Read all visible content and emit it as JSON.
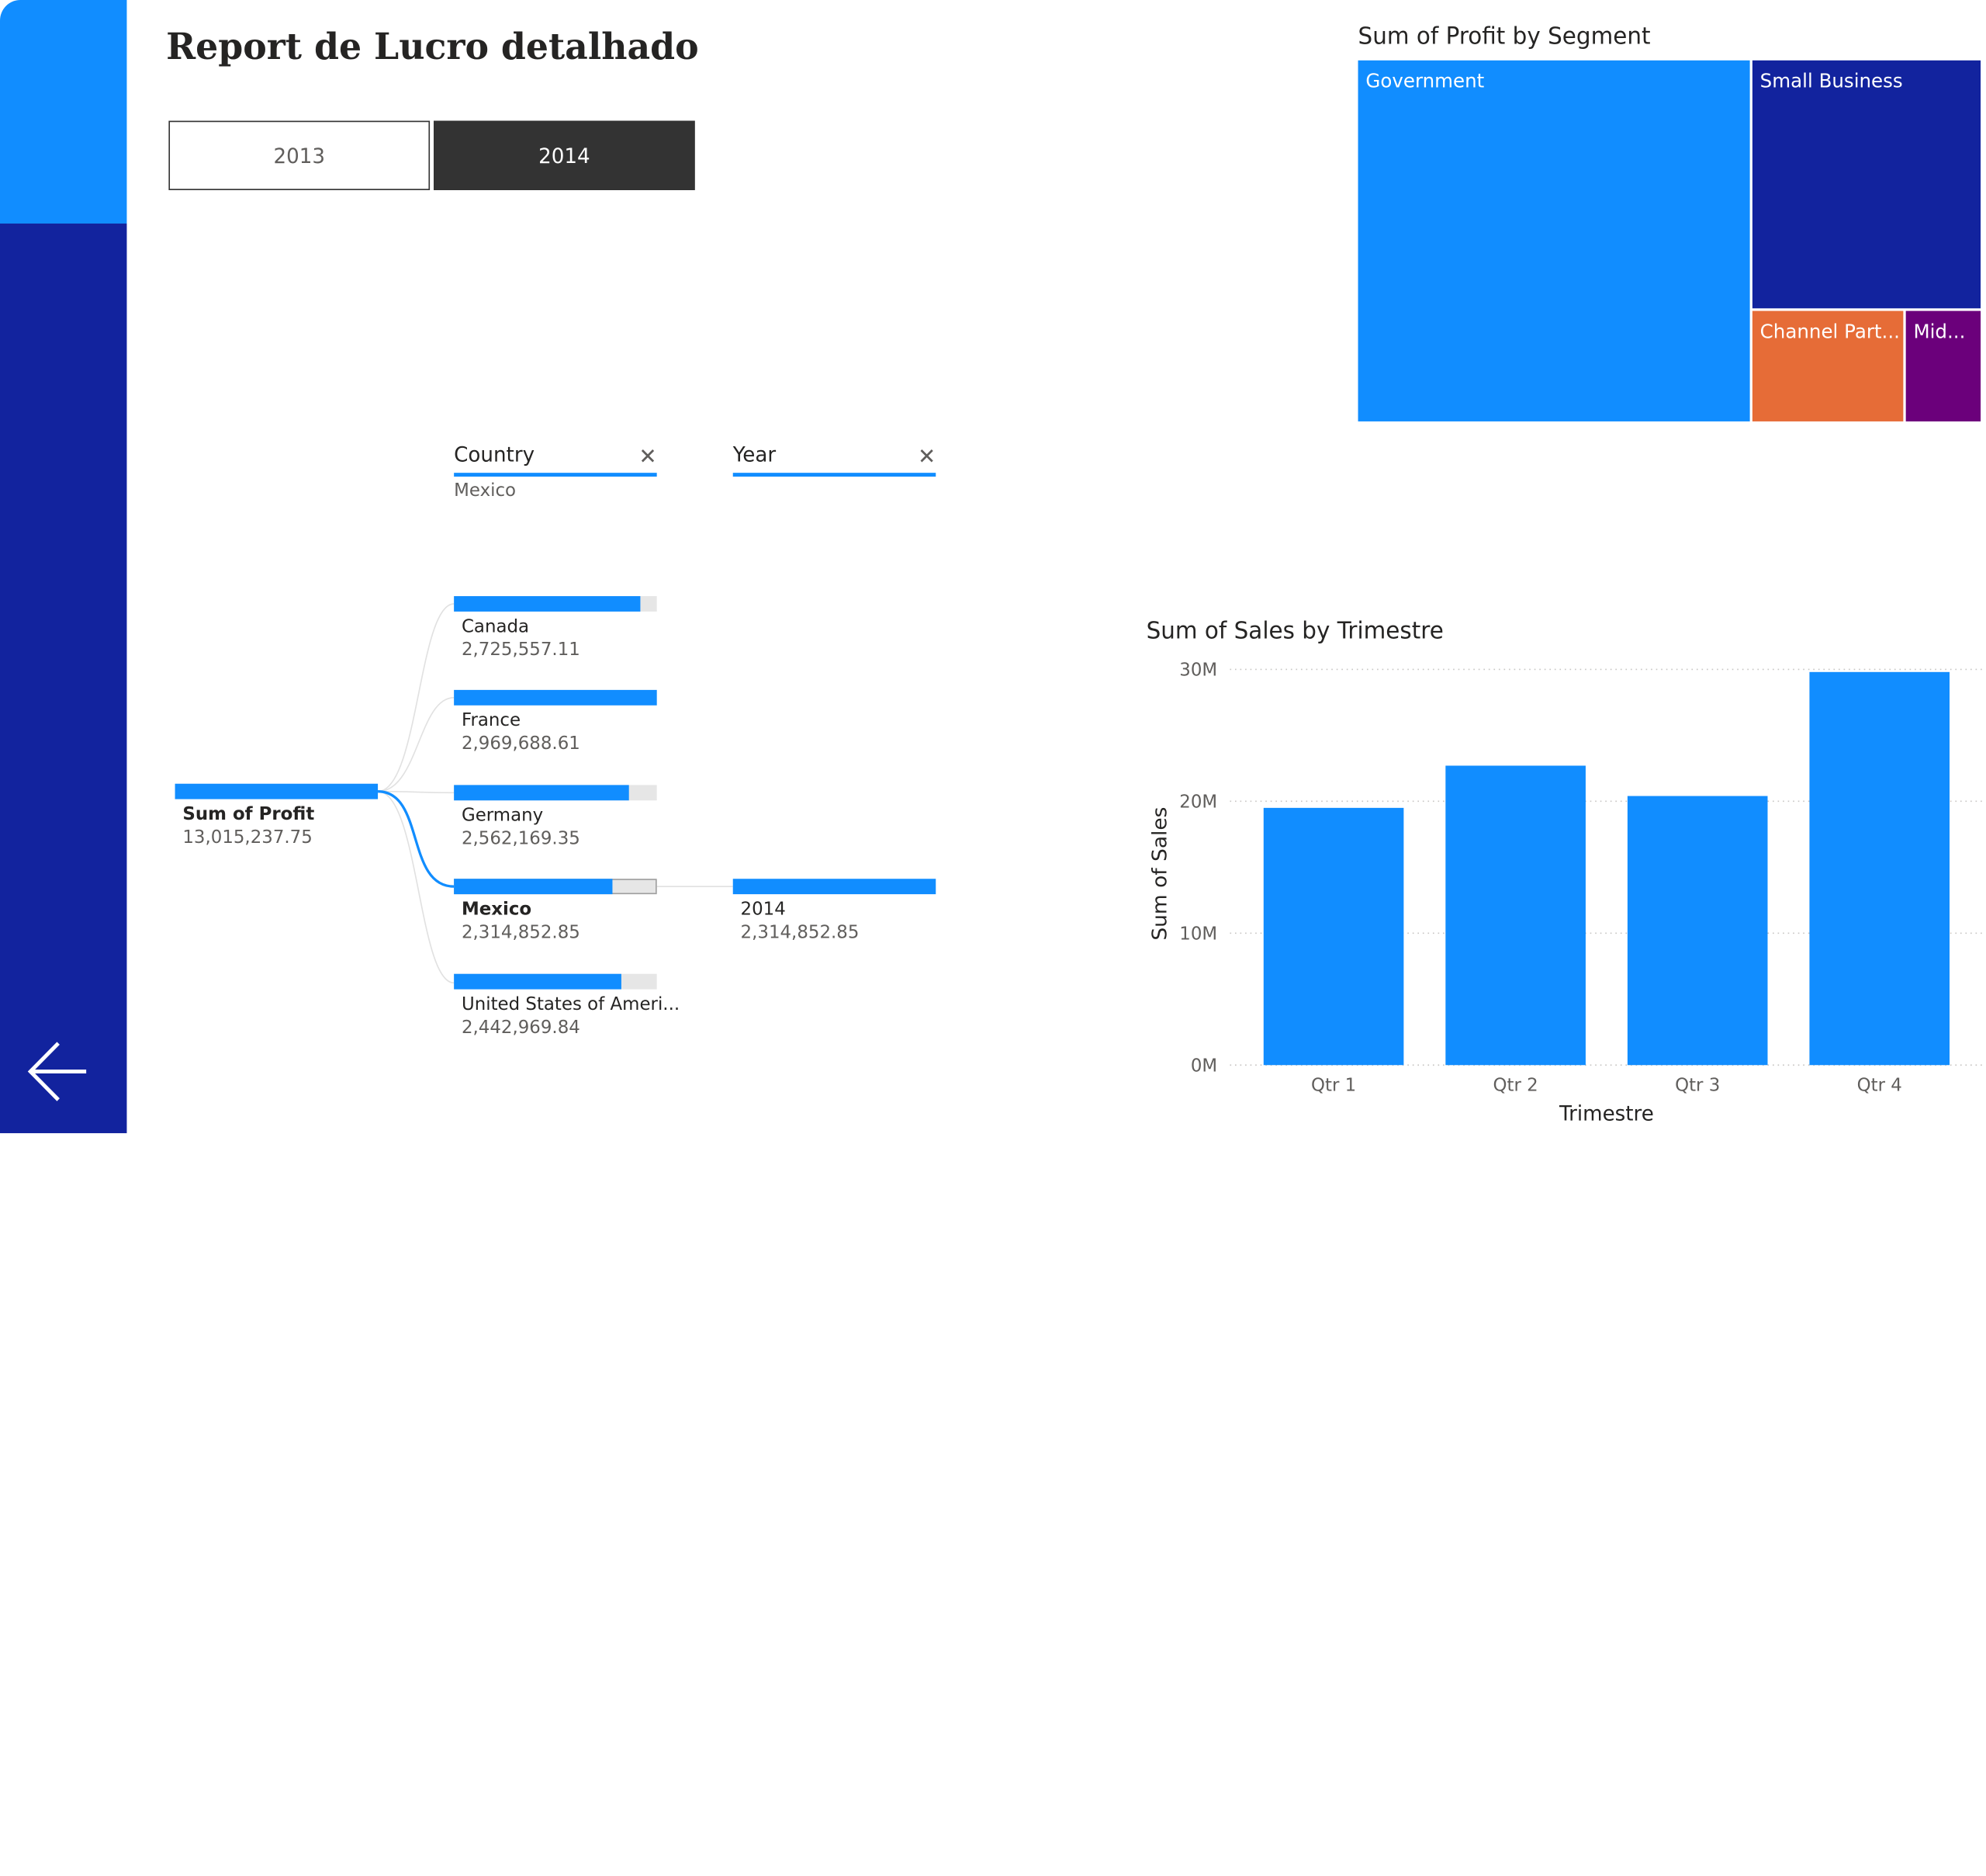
{
  "report": {
    "title": "Report de Lucro detalhado",
    "back_icon": "arrow-left-icon"
  },
  "year_slicer": {
    "options": [
      {
        "label": "2013",
        "selected": false
      },
      {
        "label": "2014",
        "selected": true
      }
    ]
  },
  "colors": {
    "accent": "#118DFF",
    "navy": "#12239E",
    "orange": "#E66C37",
    "purple": "#6B007B",
    "dark": "#333333"
  },
  "decomposition_tree": {
    "root": {
      "label": "Sum of Profit",
      "value": "13,015,237.75"
    },
    "levels": [
      {
        "header": "Country",
        "selection": "Mexico",
        "close_icon": "close-icon"
      },
      {
        "header": "Year",
        "selection": "",
        "close_icon": "close-icon"
      }
    ],
    "countries": [
      {
        "label": "Canada",
        "value": "2,725,557.11",
        "fraction": 0.918,
        "selected": false
      },
      {
        "label": "France",
        "value": "2,969,688.61",
        "fraction": 1.0,
        "selected": false
      },
      {
        "label": "Germany",
        "value": "2,562,169.35",
        "fraction": 0.863,
        "selected": false
      },
      {
        "label": "Mexico",
        "value": "2,314,852.85",
        "fraction": 0.78,
        "selected": true
      },
      {
        "label": "United States of Ameri...",
        "value": "2,442,969.84",
        "fraction": 0.823,
        "selected": false
      }
    ],
    "years": [
      {
        "label": "2014",
        "value": "2,314,852.85",
        "fraction": 1.0
      }
    ]
  },
  "treemap": {
    "title": "Sum of Profit by Segment",
    "segments": [
      {
        "label": "Government",
        "color": "#118DFF"
      },
      {
        "label": "Small Business",
        "color": "#12239E"
      },
      {
        "label": "Channel Part...",
        "color": "#E66C37"
      },
      {
        "label": "Mid...",
        "color": "#6B007B"
      }
    ]
  },
  "chart_data": {
    "type": "bar",
    "title": "Sum of Sales by Trimestre",
    "xlabel": "Trimestre",
    "ylabel": "Sum of Sales",
    "categories": [
      "Qtr 1",
      "Qtr 2",
      "Qtr 3",
      "Qtr 4"
    ],
    "values": [
      19.5,
      22.7,
      20.4,
      29.8
    ],
    "ylim": [
      0,
      30
    ],
    "yticks": [
      {
        "value": 0,
        "label": "0M"
      },
      {
        "value": 10,
        "label": "10M"
      },
      {
        "value": 20,
        "label": "20M"
      },
      {
        "value": 30,
        "label": "30M"
      }
    ],
    "color": "#118DFF",
    "grid": true
  }
}
